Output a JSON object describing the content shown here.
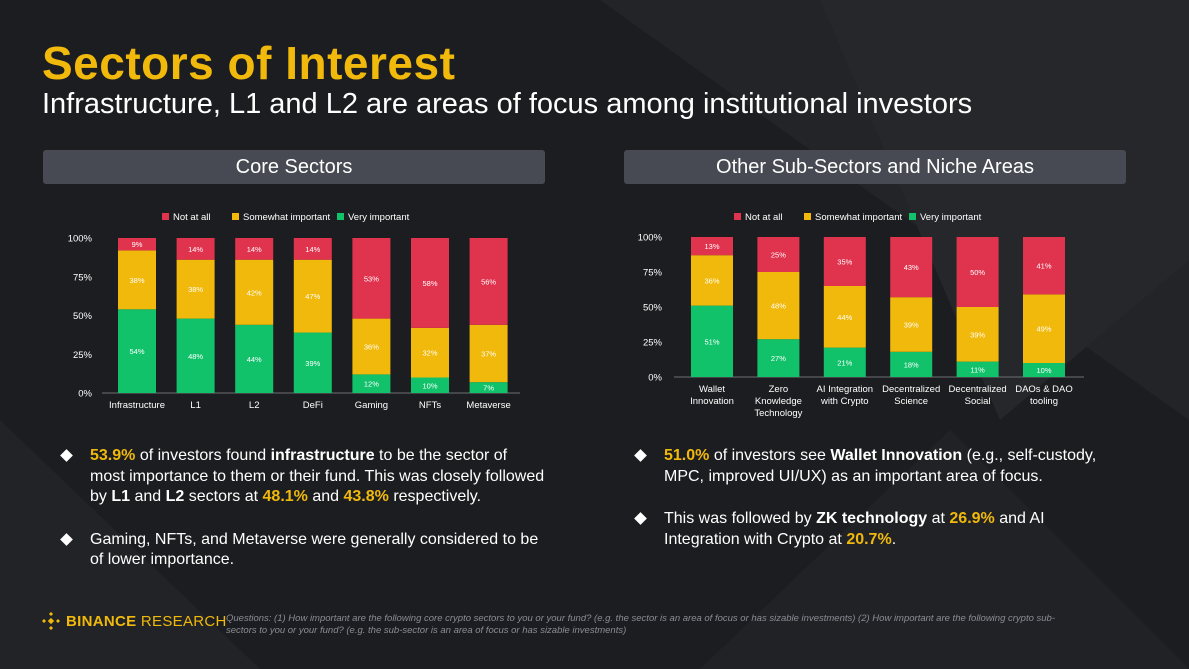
{
  "title": "Sectors of Interest",
  "subtitle": "Infrastructure, L1 and L2 are areas of focus among institutional investors",
  "colors": {
    "accent": "#f0b90b",
    "not_at_all": "#e0334e",
    "somewhat": "#f0b90b",
    "very": "#12c26b"
  },
  "panels": {
    "left_header": "Core Sectors",
    "right_header": "Other Sub-Sectors and Niche Areas"
  },
  "chart_data": [
    {
      "type": "bar",
      "stacked": true,
      "title": "Core Sectors",
      "categories": [
        "Infrastructure",
        "L1",
        "L2",
        "DeFi",
        "Gaming",
        "NFTs",
        "Metaverse"
      ],
      "series": [
        {
          "name": "Very important",
          "values": [
            54,
            48,
            44,
            39,
            12,
            10,
            7
          ],
          "labels": [
            "54%",
            "48%",
            "44%",
            "39%",
            "12%",
            "10%",
            "7%"
          ]
        },
        {
          "name": "Somewhat important",
          "values": [
            38,
            38,
            42,
            47,
            36,
            32,
            37
          ],
          "labels": [
            "38%",
            "38%",
            "42%",
            "47%",
            "36%",
            "32%",
            "37%"
          ]
        },
        {
          "name": "Not at all",
          "values": [
            9,
            14,
            14,
            14,
            53,
            58,
            56
          ],
          "labels": [
            "9%",
            "14%",
            "14%",
            "14%",
            "53%",
            "58%",
            "56%"
          ]
        }
      ],
      "legend": [
        "Not at all",
        "Somewhat important",
        "Very important"
      ],
      "yticks": [
        "0%",
        "25%",
        "50%",
        "75%",
        "100%"
      ],
      "ylim": [
        0,
        100
      ],
      "legend_position": "top",
      "grid": false
    },
    {
      "type": "bar",
      "stacked": true,
      "title": "Other Sub-Sectors and Niche Areas",
      "categories": [
        "Wallet Innovation",
        "Zero Knowledge Technology",
        "AI Integration with Crypto",
        "Decentralized Science",
        "Decentralized Social",
        "DAOs & DAO tooling"
      ],
      "category_lines": [
        [
          "Wallet",
          "Innovation"
        ],
        [
          "Zero",
          "Knowledge",
          "Technology"
        ],
        [
          "AI Integration",
          "with Crypto"
        ],
        [
          "Decentralized",
          "Science"
        ],
        [
          "Decentralized",
          "Social"
        ],
        [
          "DAOs & DAO",
          "tooling"
        ]
      ],
      "series": [
        {
          "name": "Very important",
          "values": [
            51,
            27,
            21,
            18,
            11,
            10
          ],
          "labels": [
            "51%",
            "27%",
            "21%",
            "18%",
            "11%",
            "10%"
          ]
        },
        {
          "name": "Somewhat important",
          "values": [
            36,
            48,
            44,
            39,
            39,
            49
          ],
          "labels": [
            "36%",
            "48%",
            "44%",
            "39%",
            "39%",
            "49%"
          ]
        },
        {
          "name": "Not at all",
          "values": [
            13,
            25,
            35,
            43,
            50,
            41
          ],
          "labels": [
            "13%",
            "25%",
            "35%",
            "43%",
            "50%",
            "41%"
          ]
        }
      ],
      "legend": [
        "Not at all",
        "Somewhat important",
        "Very important"
      ],
      "yticks": [
        "0%",
        "25%",
        "50%",
        "75%",
        "100%"
      ],
      "ylim": [
        0,
        100
      ],
      "legend_position": "top",
      "grid": false
    }
  ],
  "left_bullets": [
    {
      "pct1": "53.9%",
      "t1": " of investors found ",
      "b1": "infrastructure",
      "t2": " to be the sector of most importance to them or their fund. This was closely followed by ",
      "b2": "L1",
      "t3": " and ",
      "b3": "L2",
      "t4": " sectors at ",
      "pct2": "48.1%",
      "t5": " and ",
      "pct3": "43.8%",
      "t6": " respectively."
    },
    {
      "text": "Gaming, NFTs, and Metaverse were generally considered to be of lower importance."
    }
  ],
  "right_bullets": [
    {
      "pct1": "51.0%",
      "t1": " of investors see ",
      "b1": "Wallet Innovation",
      "t2": " (e.g., self-custody, MPC, improved UI/UX) as an important area of focus."
    },
    {
      "t1": "This was followed by ",
      "b1": "ZK technology",
      "t2": " at ",
      "pct1": "26.9%",
      "t3": " and AI Integration with Crypto at ",
      "pct2": "20.7%",
      "t4": "."
    }
  ],
  "footer": {
    "brand_bold": "BINANCE",
    "brand_rest": " RESEARCH",
    "footnote": "Questions: (1) How important are the following core crypto sectors to you or your fund? (e.g. the sector is an area of focus or has sizable investments) (2) How important are the following crypto sub-sectors to you or your fund? (e.g. the sub-sector is an area of focus or has sizable investments)"
  }
}
